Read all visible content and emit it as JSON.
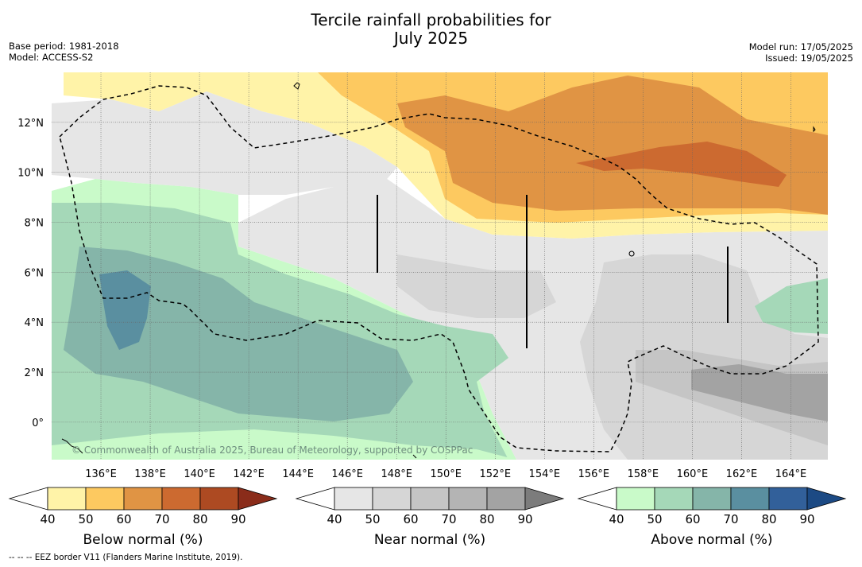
{
  "title_line1": "Tercile rainfall probabilities for",
  "title_line2": "July 2025",
  "base_period": "Base period: 1981-2018",
  "model": "Model: ACCESS-S2",
  "model_run": "Model run: 17/05/2025",
  "issued": "Issued: 19/05/2025",
  "copyright": "© Commonwealth of Australia 2025, Bureau of Meteorology, supported by COSPPac",
  "footnote": "--  --  -- EEZ border V11 (Flanders Marine Institute, 2019).",
  "map": {
    "lon_range": [
      134.0,
      165.5
    ],
    "lat_range": [
      -1.5,
      14.0
    ],
    "lon_ticks": [
      {
        "value": 136,
        "label": "136°E"
      },
      {
        "value": 138,
        "label": "138°E"
      },
      {
        "value": 140,
        "label": "140°E"
      },
      {
        "value": 142,
        "label": "142°E"
      },
      {
        "value": 144,
        "label": "144°E"
      },
      {
        "value": 146,
        "label": "146°E"
      },
      {
        "value": 148,
        "label": "148°E"
      },
      {
        "value": 150,
        "label": "150°E"
      },
      {
        "value": 152,
        "label": "152°E"
      },
      {
        "value": 154,
        "label": "154°E"
      },
      {
        "value": 156,
        "label": "156°E"
      },
      {
        "value": 158,
        "label": "158°E"
      },
      {
        "value": 160,
        "label": "160°E"
      },
      {
        "value": 162,
        "label": "162°E"
      },
      {
        "value": 164,
        "label": "164°E"
      }
    ],
    "lat_ticks": [
      {
        "value": 12,
        "label": "12°N"
      },
      {
        "value": 10,
        "label": "10°N"
      },
      {
        "value": 8,
        "label": "8°N"
      },
      {
        "value": 6,
        "label": "6°N"
      },
      {
        "value": 4,
        "label": "4°N"
      },
      {
        "value": 2,
        "label": "2°N"
      },
      {
        "value": 0,
        "label": "0°"
      }
    ]
  },
  "colorbars": [
    {
      "title": "Below normal (%)",
      "labels": [
        "40",
        "50",
        "60",
        "70",
        "80",
        "90"
      ],
      "colors": [
        "#fff3a8",
        "#fdc960",
        "#e09444",
        "#cc6a30",
        "#ad4a22",
        "#8a2c1a"
      ]
    },
    {
      "title": "Near normal (%)",
      "labels": [
        "40",
        "50",
        "60",
        "70",
        "80",
        "90"
      ],
      "colors": [
        "#e6e6e6",
        "#d6d6d6",
        "#c5c5c5",
        "#b4b4b4",
        "#a3a3a3",
        "#7c7c7c"
      ]
    },
    {
      "title": "Above normal (%)",
      "labels": [
        "40",
        "50",
        "60",
        "70",
        "80",
        "90"
      ],
      "colors": [
        "#c9fac9",
        "#a5d8b8",
        "#85b5a9",
        "#5a8fa0",
        "#32609a",
        "#1c4a84"
      ]
    }
  ]
}
